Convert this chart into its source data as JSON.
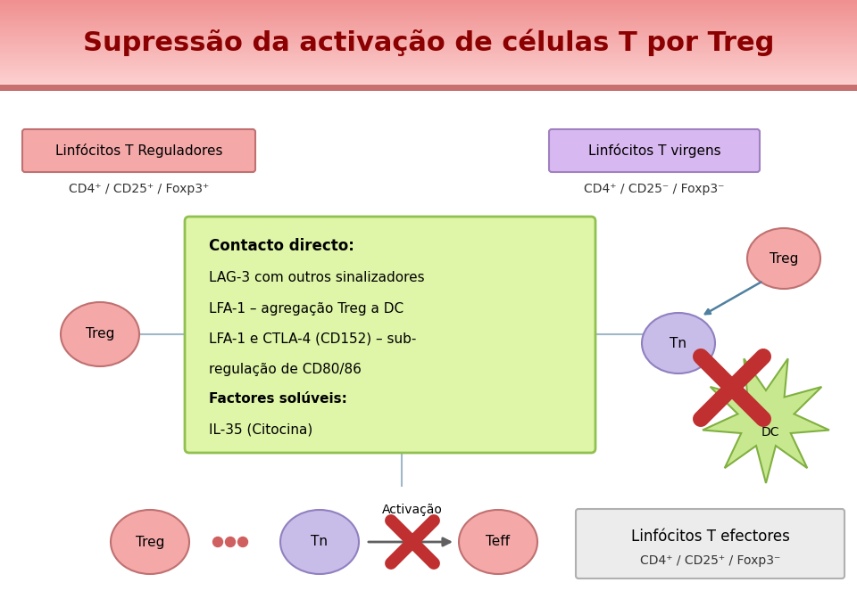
{
  "title": "Supressão da activação de células T por Treg",
  "title_color": "#8B0000",
  "box_left_label": "Linfócitos T Reguladores",
  "box_left_sub": "CD4⁺ / CD25⁺ / Foxp3⁺",
  "box_right_label": "Linfócitos T virgens",
  "box_right_sub": "CD4⁺ / CD25⁻ / Foxp3⁻",
  "box_left_color": "#f4a8a8",
  "box_left_border": "#c07070",
  "box_right_color": "#d8b8f0",
  "box_right_border": "#a080c0",
  "green_box_color": "#dff5a8",
  "green_box_border": "#90c050",
  "green_box_title": "Contacto directo:",
  "green_box_lines": [
    "LAG-3 com outros sinalizadores",
    "LFA-1 – agregação Treg a DC",
    "LFA-1 e CTLA-4 (CD152) – sub-",
    "regulação de CD80/86",
    "Factores solúveis:",
    "IL-35 (Citocina)"
  ],
  "green_box_bold": [
    false,
    false,
    false,
    false,
    true,
    false
  ],
  "treg_color": "#f4a8a8",
  "treg_border": "#c07070",
  "tn_color": "#c8bce8",
  "tn_border": "#9080c0",
  "teff_color": "#f4a8a8",
  "teff_border": "#c07070",
  "dc_color": "#c8e890",
  "dc_border": "#80b040",
  "bottom_box_color": "#ececec",
  "bottom_box_border": "#b0b0b0",
  "bottom_box_text": "Linfócitos T efectores",
  "bottom_box_sub": "CD4⁺ / CD25⁺ / Foxp3⁻",
  "background_color": "#ffffff",
  "line_color": "#a0b8c8",
  "cross_color": "#c03030",
  "title_grad_top": "#fdd0d0",
  "title_grad_bot": "#f09090",
  "title_stripe": "#c87070"
}
